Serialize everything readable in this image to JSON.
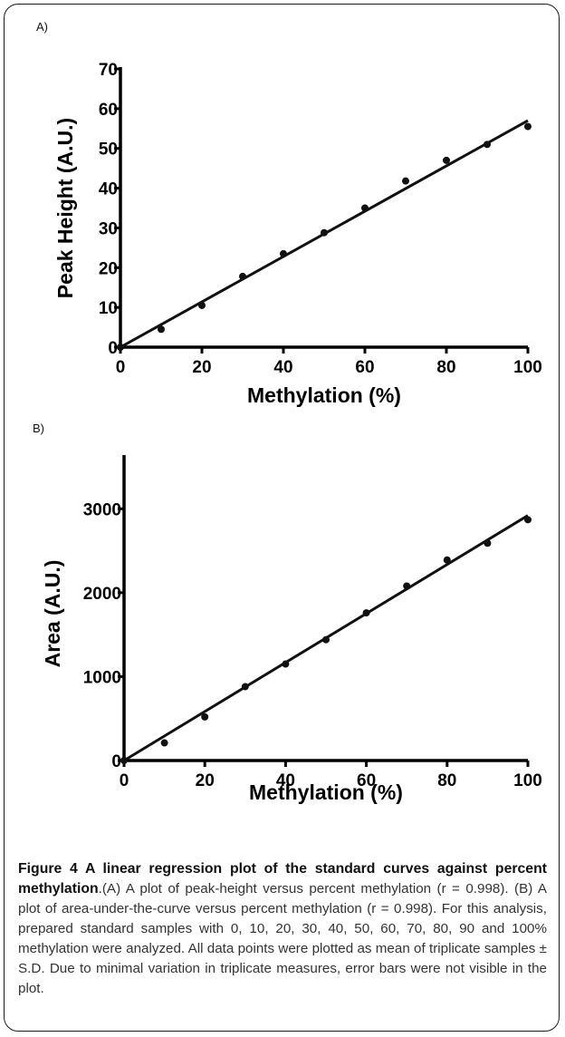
{
  "panels": [
    {
      "label": "A)",
      "chart_data": {
        "type": "scatter",
        "title": "",
        "xlabel": "Methylation (%)",
        "ylabel": "Peak Height (A.U.)",
        "xlim": [
          0,
          100
        ],
        "ylim": [
          0,
          70
        ],
        "xticks": [
          0,
          20,
          40,
          60,
          80,
          100
        ],
        "yticks": [
          0,
          10,
          20,
          30,
          40,
          50,
          60,
          70
        ],
        "grid": false,
        "series": [
          {
            "x": [
              0,
              10,
              20,
              30,
              40,
              50,
              60,
              70,
              80,
              90,
              100
            ],
            "y": [
              0,
              4.5,
              10.5,
              17.8,
              23.5,
              28.8,
              35,
              41.8,
              47,
              51,
              55.5
            ],
            "color": "#111111"
          }
        ],
        "fit_line": {
          "x": [
            0,
            100
          ],
          "y": [
            0,
            57
          ],
          "color": "#111111"
        }
      }
    },
    {
      "label": "B)",
      "chart_data": {
        "type": "scatter",
        "title": "",
        "xlabel": "Methylation (%)",
        "ylabel": "Area (A.U.)",
        "xlim": [
          0,
          100
        ],
        "ylim": [
          0,
          3500
        ],
        "xticks": [
          0,
          20,
          40,
          60,
          80,
          100
        ],
        "yticks": [
          0,
          1000,
          2000,
          3000
        ],
        "grid": false,
        "series": [
          {
            "x": [
              0,
              10,
              20,
              30,
              40,
              50,
              60,
              70,
              80,
              90,
              100
            ],
            "y": [
              0,
              210,
              520,
              880,
              1150,
              1440,
              1760,
              2080,
              2390,
              2590,
              2870
            ],
            "color": "#111111"
          }
        ],
        "fit_line": {
          "x": [
            0,
            100
          ],
          "y": [
            0,
            2920
          ],
          "color": "#111111"
        }
      }
    }
  ],
  "caption": {
    "title": "Figure 4 A linear regression plot of the standard curves against percent methylation",
    "text": ".(A) A plot of peak-height versus percent methylation (r = 0.998). (B) A plot of area-under-the-curve versus percent methylation (r = 0.998). For this analysis, prepared standard samples with 0, 10, 20, 30, 40, 50, 60, 70, 80, 90 and 100% methylation were analyzed. All data points were plotted as mean of triplicate samples ± S.D. Due to minimal variation in triplicate measures, error bars were not visible in the plot."
  }
}
